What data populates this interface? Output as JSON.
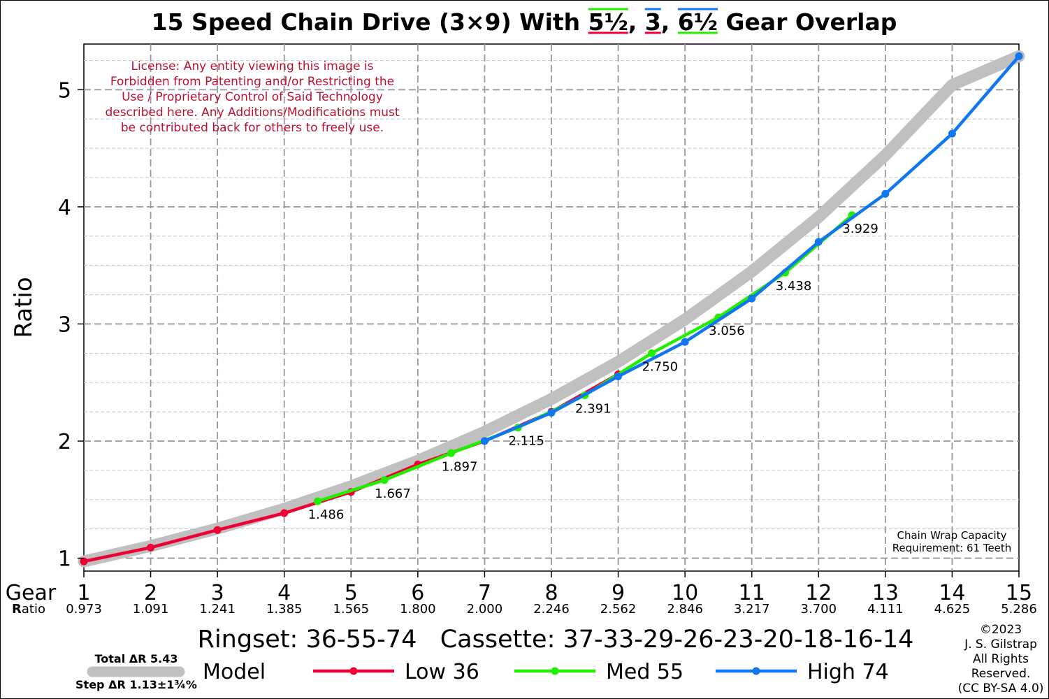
{
  "chart_data": {
    "type": "line",
    "title": {
      "prefix": "15 Speed Chain Drive (3×9) With ",
      "overlaps": [
        "5½",
        "3",
        "6½"
      ],
      "separators": [
        ", ",
        ", "
      ],
      "suffix": " Gear Overlap"
    },
    "ylabel": "Ratio",
    "xlabel": "Gear",
    "ratio_row_label": "Ratio",
    "ratio_row_label_first": "R",
    "ratio_row_label_rest": "atio",
    "xlim": [
      1,
      15
    ],
    "ylim": [
      0.89,
      5.39
    ],
    "yticks": [
      1,
      2,
      3,
      4,
      5
    ],
    "ytick_labels": [
      "1",
      "2",
      "3",
      "4",
      "5"
    ],
    "xticks": [
      1,
      2,
      3,
      4,
      5,
      6,
      7,
      8,
      9,
      10,
      11,
      12,
      13,
      14,
      15
    ],
    "xtick_labels": [
      "1",
      "2",
      "3",
      "4",
      "5",
      "6",
      "7",
      "8",
      "9",
      "10",
      "11",
      "12",
      "13",
      "14",
      "15"
    ],
    "gear_ratios": [
      "0.973",
      "1.091",
      "1.241",
      "1.385",
      "1.565",
      "1.800",
      "2.000",
      "2.246",
      "2.562",
      "2.846",
      "3.217",
      "3.700",
      "4.111",
      "4.625",
      "5.286"
    ],
    "grid": true,
    "series": [
      {
        "name": "Model",
        "color": "#c0c0c0",
        "x": [
          1,
          2,
          3,
          4,
          5,
          6,
          7,
          8,
          9,
          10,
          11,
          12,
          13,
          14,
          15
        ],
        "y": [
          0.973,
          1.104,
          1.253,
          1.422,
          1.614,
          1.832,
          2.079,
          2.359,
          2.677,
          3.038,
          3.448,
          3.913,
          4.441,
          5.04,
          5.286
        ]
      },
      {
        "name": "Low 36",
        "color": "#ee0033",
        "x": [
          1,
          2,
          3,
          4,
          5,
          6,
          7,
          8,
          9
        ],
        "y": [
          0.973,
          1.091,
          1.241,
          1.385,
          1.565,
          1.8,
          2.0,
          2.25,
          2.571
        ]
      },
      {
        "name": "Med 55",
        "color": "#22ee00",
        "x": [
          4.5,
          5.5,
          6.5,
          7.5,
          8.5,
          9.5,
          10.5,
          11.5,
          12.5
        ],
        "y": [
          1.486,
          1.667,
          1.897,
          2.115,
          2.391,
          2.75,
          3.056,
          3.438,
          3.929
        ]
      },
      {
        "name": "High 74",
        "color": "#1177ee",
        "x": [
          7,
          8,
          9,
          10,
          11,
          12,
          13,
          14,
          15
        ],
        "y": [
          2.0,
          2.242,
          2.552,
          2.846,
          3.217,
          3.7,
          4.111,
          4.625,
          5.286
        ]
      }
    ],
    "point_labels": [
      {
        "x": 4.5,
        "y": 1.486,
        "text": "1.486"
      },
      {
        "x": 5.5,
        "y": 1.667,
        "text": "1.667"
      },
      {
        "x": 6.5,
        "y": 1.897,
        "text": "1.897"
      },
      {
        "x": 7.5,
        "y": 2.115,
        "text": "2.115"
      },
      {
        "x": 8.5,
        "y": 2.391,
        "text": "2.391"
      },
      {
        "x": 9.5,
        "y": 2.75,
        "text": "2.750"
      },
      {
        "x": 10.5,
        "y": 3.056,
        "text": "3.056"
      },
      {
        "x": 11.5,
        "y": 3.438,
        "text": "3.438"
      },
      {
        "x": 12.5,
        "y": 3.929,
        "text": "3.929"
      }
    ],
    "license_text": [
      "License: Any entity viewing this image is",
      "Forbidden from Patenting and/or Restricting the",
      "Use / Proprietary Control of Said Technology",
      "described here. Any Additions/Modifications must",
      "be contributed back for others to freely use."
    ],
    "chain_wrap_text": [
      "Chain Wrap Capacity",
      "Requirement: 61 Teeth"
    ],
    "config_text": "Ringset: 36-55-74   Cassette: 37-33-29-26-23-20-18-16-14",
    "model_total": "Total ΔR 5.43",
    "model_step": "Step ΔR 1.13±1¾%",
    "copyright": [
      "©2023",
      "J. S. Gilstrap",
      "All Rights",
      "Reserved.",
      "(CC BY-SA 4.0)"
    ],
    "colors": {
      "title_underline_5_5": [
        "#22ee00",
        "#ee0033"
      ],
      "title_underline_3": [
        "#1177ee",
        "#ee0033"
      ],
      "title_underline_6_5": [
        "#1177ee",
        "#22ee00"
      ],
      "license": "#bb1133"
    }
  }
}
